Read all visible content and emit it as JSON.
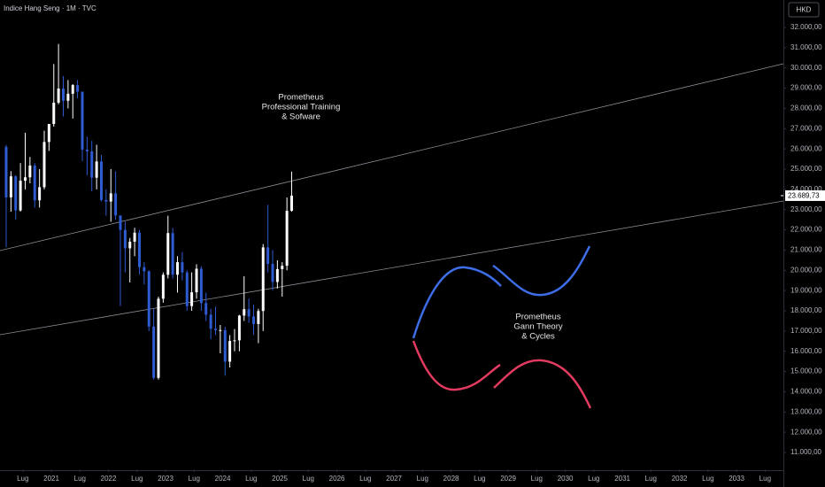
{
  "chart_data": {
    "type": "candlestick",
    "title": "Indice Hang Seng · 1M · TVC",
    "currency": "HKD",
    "up_color": "#ffffff",
    "down_color": "#2f5bd3",
    "annotations": [
      {
        "lines": [
          "Prometheus",
          "Professional Training",
          "& Sofware"
        ]
      },
      {
        "lines": [
          "Prometheus",
          "Gann Theory",
          "& Cycles"
        ]
      }
    ],
    "last_price": {
      "value": 23689.73,
      "label": "23.689,73"
    },
    "trendlines": [
      {
        "x": [
          2020.1,
          2033.82
        ],
        "y": [
          20975,
          30206
        ]
      },
      {
        "x": [
          2020.1,
          2033.82
        ],
        "y": [
          16819,
          23425
        ]
      }
    ],
    "x": [
      2020.208,
      2020.292,
      2020.375,
      2020.458,
      2020.542,
      2020.625,
      2020.708,
      2020.792,
      2020.875,
      2020.958,
      2021.042,
      2021.125,
      2021.208,
      2021.292,
      2021.375,
      2021.458,
      2021.542,
      2021.625,
      2021.708,
      2021.792,
      2021.875,
      2021.958,
      2022.042,
      2022.125,
      2022.208,
      2022.292,
      2022.375,
      2022.458,
      2022.542,
      2022.625,
      2022.708,
      2022.792,
      2022.875,
      2022.958,
      2023.042,
      2023.125,
      2023.208,
      2023.292,
      2023.375,
      2023.458,
      2023.542,
      2023.625,
      2023.708,
      2023.792,
      2023.875,
      2023.958,
      2024.042,
      2024.125,
      2024.208,
      2024.292,
      2024.375,
      2024.458,
      2024.542,
      2024.625,
      2024.708,
      2024.792,
      2024.875,
      2024.958,
      2025.042,
      2025.125,
      2025.208
    ],
    "open": [
      26100,
      23603,
      24644,
      22961,
      24427,
      24595,
      25177,
      23459,
      24107,
      26341,
      27231,
      28284,
      28980,
      28378,
      28725,
      29152,
      28828,
      25961,
      25879,
      24576,
      25377,
      23475,
      23398,
      23802,
      22713,
      21997,
      21089,
      21415,
      21860,
      20157,
      19954,
      17223,
      14687,
      18597,
      19781,
      21842,
      19786,
      20400,
      19895,
      18234,
      18916,
      20079,
      18382,
      17809,
      17112,
      17042,
      17047,
      15485,
      16511,
      16541,
      17763,
      18080,
      17719,
      17345,
      17989,
      21134,
      20317,
      19424,
      20060,
      20225,
      22941
    ],
    "high": [
      26200,
      24900,
      24700,
      25300,
      26800,
      25600,
      25300,
      25000,
      26900,
      27000,
      30191,
      31183,
      29600,
      29400,
      29200,
      29400,
      28800,
      26600,
      26400,
      26200,
      25700,
      24000,
      25000,
      24900,
      22700,
      22400,
      21600,
      22100,
      22000,
      20400,
      20000,
      18100,
      18700,
      19900,
      22700,
      22100,
      20700,
      20900,
      20000,
      19900,
      20300,
      20200,
      18900,
      18100,
      18200,
      17300,
      17200,
      16800,
      17100,
      17800,
      19706,
      18600,
      18300,
      18100,
      21300,
      23241,
      21000,
      20500,
      20400,
      23600,
      24874
    ],
    "low": [
      21139,
      22900,
      22500,
      22900,
      24000,
      24300,
      23100,
      23100,
      24000,
      25900,
      27100,
      28200,
      27600,
      28000,
      27500,
      28500,
      25400,
      24700,
      23900,
      24000,
      23400,
      22700,
      22400,
      22500,
      18235,
      19900,
      19400,
      20700,
      19800,
      19300,
      17000,
      14597,
      14600,
      18400,
      19600,
      19600,
      18900,
      19500,
      18000,
      18000,
      18600,
      18000,
      17500,
      16600,
      16800,
      15900,
      14794,
      15200,
      16000,
      16000,
      17500,
      17400,
      16800,
      16400,
      17000,
      19900,
      19000,
      19100,
      18700,
      20000,
      22900
    ],
    "close": [
      23603,
      24644,
      22961,
      24427,
      24595,
      25177,
      23459,
      24107,
      26341,
      27231,
      28284,
      28980,
      28378,
      28725,
      29152,
      28828,
      25961,
      25879,
      24576,
      25377,
      23475,
      23398,
      23802,
      22713,
      21997,
      21089,
      21415,
      21860,
      20157,
      19954,
      17223,
      14687,
      18597,
      19781,
      21842,
      19786,
      20400,
      19895,
      18234,
      18916,
      20079,
      18382,
      17809,
      17112,
      17042,
      17047,
      15485,
      16511,
      16541,
      17763,
      18080,
      17719,
      17345,
      17989,
      21134,
      20317,
      19424,
      20060,
      20225,
      22941,
      23690
    ],
    "xlim": [
      2020.1,
      2033.82
    ],
    "xticks": [
      {
        "value": 2020.5,
        "label": "Lug"
      },
      2021,
      {
        "value": 2021.5,
        "label": "Lug"
      },
      2022,
      {
        "value": 2022.5,
        "label": "Lug"
      },
      2023,
      {
        "value": 2023.5,
        "label": "Lug"
      },
      2024,
      {
        "value": 2024.5,
        "label": "Lug"
      },
      2025,
      {
        "value": 2025.5,
        "label": "Lug"
      },
      2026,
      {
        "value": 2026.5,
        "label": "Lug"
      },
      2027,
      {
        "value": 2027.5,
        "label": "Lug"
      },
      2028,
      {
        "value": 2028.5,
        "label": "Lug"
      },
      2029,
      {
        "value": 2029.5,
        "label": "Lug"
      },
      2030,
      {
        "value": 2030.5,
        "label": "Lug"
      },
      2031,
      {
        "value": 2031.5,
        "label": "Lug"
      },
      2032,
      {
        "value": 2032.5,
        "label": "Lug"
      },
      2033,
      {
        "value": 2033.5,
        "label": "Lug"
      }
    ],
    "ylim": [
      10169,
      33356
    ],
    "yticks": [
      {
        "value": 11000,
        "label": "11.000,00"
      },
      {
        "value": 12000,
        "label": "12.000,00"
      },
      {
        "value": 13000,
        "label": "13.000,00"
      },
      {
        "value": 14000,
        "label": "14.000,00"
      },
      {
        "value": 15000,
        "label": "15.000,00"
      },
      {
        "value": 16000,
        "label": "16.000,00"
      },
      {
        "value": 17000,
        "label": "17.000,00"
      },
      {
        "value": 18000,
        "label": "18.000,00"
      },
      {
        "value": 19000,
        "label": "19.000,00"
      },
      {
        "value": 20000,
        "label": "20.000,00"
      },
      {
        "value": 21000,
        "label": "21.000,00"
      },
      {
        "value": 22000,
        "label": "22.000,00"
      },
      {
        "value": 23000,
        "label": "23.000,00"
      },
      {
        "value": 24000,
        "label": "24.000,00"
      },
      {
        "value": 25000,
        "label": "25.000,00"
      },
      {
        "value": 26000,
        "label": "26.000,00"
      },
      {
        "value": 27000,
        "label": "27.000,00"
      },
      {
        "value": 28000,
        "label": "28.000,00"
      },
      {
        "value": 29000,
        "label": "29.000,00"
      },
      {
        "value": 30000,
        "label": "30.000,00"
      },
      {
        "value": 31000,
        "label": "31.000,00"
      },
      {
        "value": 32000,
        "label": "32.000,00"
      }
    ]
  }
}
